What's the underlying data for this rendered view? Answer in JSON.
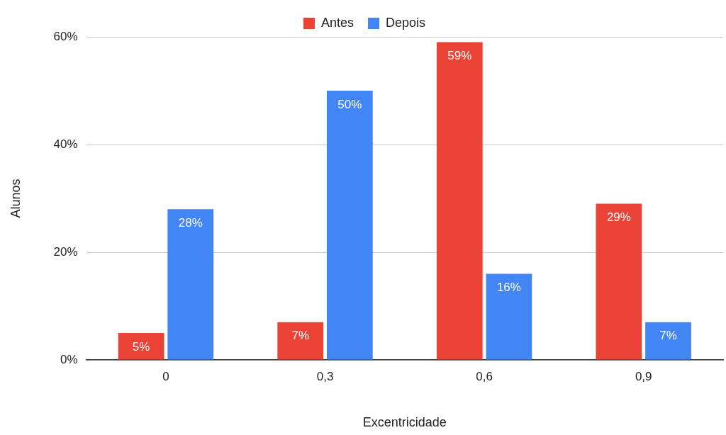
{
  "chart_data": {
    "type": "bar",
    "xlabel": "Excentricidade",
    "ylabel": "Alunos",
    "categories": [
      "0",
      "0,3",
      "0,6",
      "0,9"
    ],
    "series": [
      {
        "name": "Antes",
        "color": "#ea4335",
        "values": [
          5,
          7,
          59,
          29
        ],
        "value_labels": [
          "5%",
          "7%",
          "59%",
          "29%"
        ]
      },
      {
        "name": "Depois",
        "color": "#4285f4",
        "values": [
          28,
          50,
          16,
          7
        ],
        "value_labels": [
          "28%",
          "50%",
          "16%",
          "7%"
        ]
      }
    ],
    "ylim": [
      0,
      60
    ],
    "yticks": [
      {
        "value": 0,
        "label": "0%"
      },
      {
        "value": 20,
        "label": "20%"
      },
      {
        "value": 40,
        "label": "40%"
      },
      {
        "value": 60,
        "label": "60%"
      }
    ],
    "grid": "y",
    "legend": "top"
  }
}
